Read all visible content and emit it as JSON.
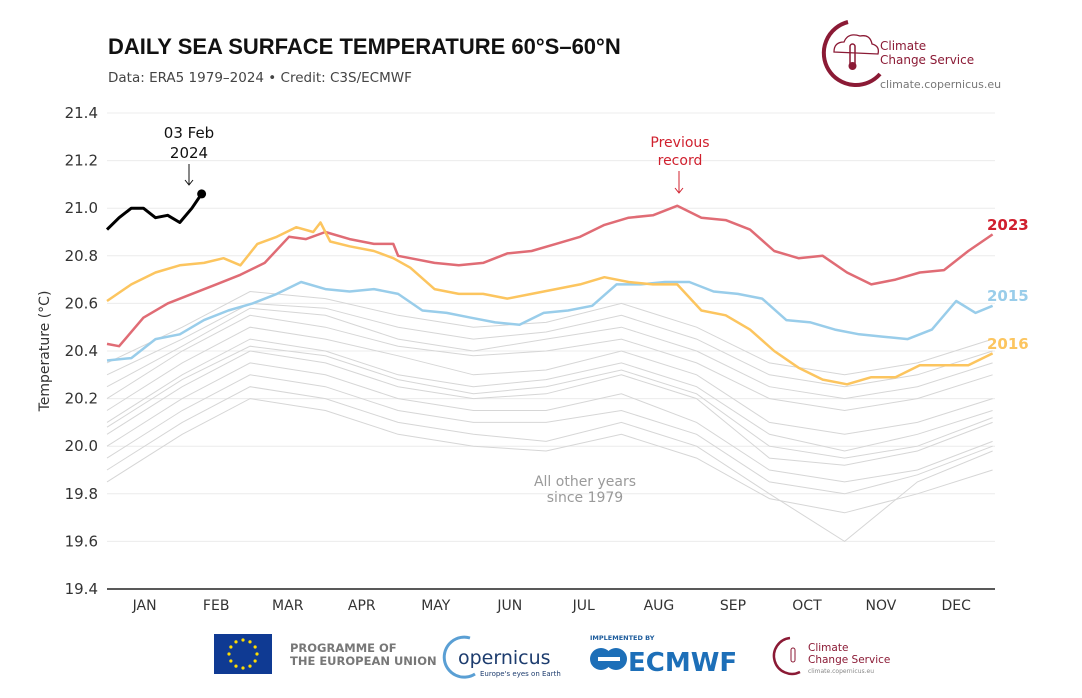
{
  "header": {
    "title": "DAILY SEA SURFACE TEMPERATURE 60°S–60°N",
    "subtitle": "Data: ERA5 1979–2024 • Credit: C3S/ECMWF"
  },
  "logo": {
    "line1": "Climate",
    "line2": "Change Service",
    "url": "climate.copernicus.eu"
  },
  "footer": {
    "eu_text_1": "PROGRAMME OF",
    "eu_text_2": "THE EUROPEAN UNION",
    "copernicus": "opernicus",
    "copernicus_tag": "Europe's eyes on Earth",
    "implemented_by": "IMPLEMENTED BY",
    "ecmwf": "ECMWF",
    "c3s_1": "Climate",
    "c3s_2": "Change Service",
    "c3s_url": "climate.copernicus.eu"
  },
  "chart_data": {
    "type": "line",
    "title": "DAILY SEA SURFACE TEMPERATURE 60°S–60°N",
    "ylabel": "Temperature (°C)",
    "ylim": [
      19.4,
      21.4
    ],
    "yticks": [
      "19.4",
      "19.6",
      "19.8",
      "20.0",
      "20.2",
      "20.4",
      "20.6",
      "20.8",
      "21.0",
      "21.2",
      "21.4"
    ],
    "xlim_day_of_year": [
      0,
      366
    ],
    "months": [
      "JAN",
      "FEB",
      "MAR",
      "APR",
      "MAY",
      "JUN",
      "JUL",
      "AUG",
      "SEP",
      "OCT",
      "NOV",
      "DEC"
    ],
    "grid": true,
    "colors": {
      "2024": "#000000",
      "2023": "#e06c75",
      "2016": "#fcc55f",
      "2015": "#99cdea",
      "other": "#d6d6d6",
      "record_label": "#d0202e",
      "label_2023": "#d0202e"
    },
    "annotations": {
      "latest": [
        "03 Feb",
        "2024"
      ],
      "record": [
        "Previous",
        "record"
      ],
      "others": [
        "All other years",
        "since 1979"
      ]
    },
    "series": [
      {
        "name": "2024",
        "x": [
          0,
          5,
          10,
          15,
          20,
          25,
          30,
          35,
          39
        ],
        "y": [
          20.91,
          20.96,
          21.0,
          21.0,
          20.96,
          20.97,
          20.94,
          21.0,
          21.06
        ]
      },
      {
        "name": "2023",
        "x": [
          0,
          5,
          15,
          25,
          35,
          45,
          55,
          65,
          75,
          82,
          90,
          100,
          110,
          118,
          120,
          125,
          135,
          145,
          155,
          165,
          175,
          185,
          195,
          205,
          215,
          225,
          235,
          245,
          255,
          265,
          275,
          285,
          295,
          305,
          315,
          325,
          335,
          345,
          355,
          365
        ],
        "y": [
          20.43,
          20.42,
          20.54,
          20.6,
          20.64,
          20.68,
          20.72,
          20.77,
          20.88,
          20.87,
          20.9,
          20.87,
          20.85,
          20.85,
          20.8,
          20.79,
          20.77,
          20.76,
          20.77,
          20.81,
          20.82,
          20.85,
          20.88,
          20.93,
          20.96,
          20.97,
          21.01,
          20.96,
          20.95,
          20.91,
          20.82,
          20.79,
          20.8,
          20.73,
          20.68,
          20.7,
          20.73,
          20.74,
          20.82,
          20.89
        ]
      },
      {
        "name": "2015",
        "x": [
          0,
          10,
          20,
          30,
          40,
          50,
          60,
          70,
          80,
          90,
          100,
          110,
          120,
          130,
          140,
          150,
          160,
          170,
          180,
          190,
          200,
          210,
          220,
          230,
          240,
          250,
          260,
          270,
          280,
          290,
          300,
          310,
          320,
          330,
          340,
          350,
          358,
          365
        ],
        "y": [
          20.36,
          20.37,
          20.45,
          20.47,
          20.53,
          20.57,
          20.6,
          20.64,
          20.69,
          20.66,
          20.65,
          20.66,
          20.64,
          20.57,
          20.56,
          20.54,
          20.52,
          20.51,
          20.56,
          20.57,
          20.59,
          20.68,
          20.68,
          20.69,
          20.69,
          20.65,
          20.64,
          20.62,
          20.53,
          20.52,
          20.49,
          20.47,
          20.46,
          20.45,
          20.49,
          20.61,
          20.56,
          20.59
        ]
      },
      {
        "name": "2016",
        "x": [
          0,
          10,
          20,
          30,
          40,
          48,
          55,
          62,
          70,
          78,
          85,
          88,
          92,
          100,
          110,
          118,
          125,
          135,
          145,
          155,
          165,
          175,
          185,
          195,
          205,
          215,
          225,
          235,
          245,
          255,
          265,
          275,
          285,
          295,
          305,
          315,
          325,
          335,
          345,
          355,
          365
        ],
        "y": [
          20.61,
          20.68,
          20.73,
          20.76,
          20.77,
          20.79,
          20.76,
          20.85,
          20.88,
          20.92,
          20.9,
          20.94,
          20.86,
          20.84,
          20.82,
          20.79,
          20.75,
          20.66,
          20.64,
          20.64,
          20.62,
          20.64,
          20.66,
          20.68,
          20.71,
          20.69,
          20.68,
          20.68,
          20.57,
          20.55,
          20.49,
          20.4,
          20.33,
          20.28,
          20.26,
          20.29,
          20.29,
          20.34,
          20.34,
          20.34,
          20.39
        ]
      }
    ],
    "other_years_x": [
      0,
      31,
      59,
      90,
      120,
      151,
      181,
      212,
      243,
      273,
      304,
      334,
      365
    ],
    "other_years": [
      [
        20.35,
        20.5,
        20.65,
        20.62,
        20.55,
        20.5,
        20.52,
        20.6,
        20.5,
        20.35,
        20.3,
        20.35,
        20.45
      ],
      [
        20.3,
        20.45,
        20.6,
        20.58,
        20.5,
        20.45,
        20.48,
        20.55,
        20.45,
        20.3,
        20.25,
        20.3,
        20.4
      ],
      [
        20.25,
        20.42,
        20.58,
        20.55,
        20.45,
        20.4,
        20.45,
        20.5,
        20.4,
        20.25,
        20.2,
        20.25,
        20.35
      ],
      [
        20.2,
        20.4,
        20.55,
        20.5,
        20.42,
        20.38,
        20.4,
        20.45,
        20.35,
        20.2,
        20.15,
        20.2,
        20.3
      ],
      [
        20.15,
        20.35,
        20.5,
        20.45,
        20.38,
        20.3,
        20.32,
        20.4,
        20.3,
        20.1,
        20.05,
        20.1,
        20.2
      ],
      [
        20.1,
        20.3,
        20.45,
        20.4,
        20.3,
        20.25,
        20.28,
        20.35,
        20.25,
        20.05,
        19.98,
        20.05,
        20.15
      ],
      [
        20.08,
        20.28,
        20.42,
        20.38,
        20.28,
        20.22,
        20.25,
        20.32,
        20.22,
        20.0,
        19.95,
        20.0,
        20.12
      ],
      [
        20.05,
        20.25,
        20.4,
        20.35,
        20.25,
        20.2,
        20.22,
        20.3,
        20.2,
        19.95,
        19.92,
        19.98,
        20.1
      ],
      [
        20.0,
        20.2,
        20.35,
        20.3,
        20.2,
        20.15,
        20.15,
        20.22,
        20.1,
        19.9,
        19.85,
        19.9,
        20.02
      ],
      [
        19.95,
        20.15,
        20.3,
        20.25,
        20.15,
        20.1,
        20.1,
        20.15,
        20.05,
        19.85,
        19.8,
        19.88,
        20.0
      ],
      [
        19.9,
        20.1,
        20.25,
        20.2,
        20.1,
        20.05,
        20.02,
        20.1,
        20.0,
        19.8,
        19.6,
        19.85,
        19.98
      ],
      [
        19.85,
        20.05,
        20.2,
        20.15,
        20.05,
        20.0,
        19.98,
        20.05,
        19.95,
        19.78,
        19.72,
        19.8,
        19.9
      ]
    ]
  }
}
